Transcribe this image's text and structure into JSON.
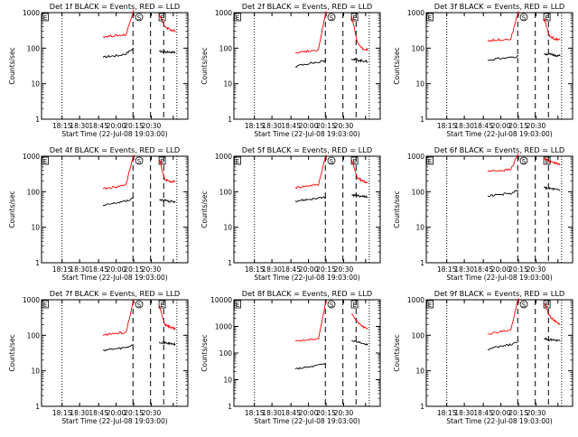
{
  "chart_data": [
    {
      "type": "line",
      "title": "Det 1f BLACK = Events, RED = LLD",
      "xlabel": "Start Time (22-Jul-08 19:03:00)",
      "ylabel": "Counts/sec",
      "ylim": [
        1,
        1000
      ],
      "yscale": "log",
      "yticks": [
        "1",
        "10",
        "100",
        "1000"
      ],
      "x_ticks": [
        "18:15",
        "18:30",
        "18:45",
        "20:00",
        "20:15",
        "20:30"
      ],
      "markers": [
        "E",
        "S",
        "E"
      ],
      "series": [
        {
          "color": "#000000",
          "values": [
            55,
            60,
            62,
            70,
            100
          ],
          "post": [
            80,
            78,
            75
          ]
        },
        {
          "color": "#ff0000",
          "values": [
            210,
            220,
            230,
            240,
            1200
          ],
          "post": [
            900,
            400,
            330,
            300
          ]
        }
      ]
    },
    {
      "type": "line",
      "title": "Det 2f BLACK = Events, RED = LLD",
      "xlabel": "Start Time (22-Jul-08 19:03:00)",
      "ylabel": "Counts/sec",
      "ylim": [
        1,
        1000
      ],
      "yscale": "log",
      "yticks": [
        "1",
        "10",
        "100",
        "1000"
      ],
      "x_ticks": [
        "18:15",
        "18:30",
        "18:45",
        "20:00",
        "20:15",
        "20:30"
      ],
      "markers": [
        "E",
        "S",
        "E"
      ],
      "series": [
        {
          "color": "#000000",
          "values": [
            30,
            35,
            38,
            40,
            45
          ],
          "post": [
            50,
            45,
            42
          ]
        },
        {
          "color": "#ff0000",
          "values": [
            75,
            80,
            85,
            90,
            1100
          ],
          "post": [
            800,
            150,
            95,
            90
          ]
        }
      ]
    },
    {
      "type": "line",
      "title": "Det 3f BLACK = Events, RED = LLD",
      "xlabel": "Start Time (22-Jul-08 19:03:00)",
      "ylabel": "Counts/sec",
      "ylim": [
        1,
        1000
      ],
      "yscale": "log",
      "yticks": [
        "1",
        "10",
        "100",
        "1000"
      ],
      "x_ticks": [
        "18:15",
        "18:30",
        "18:45",
        "20:00",
        "20:15",
        "20:30"
      ],
      "markers": [
        "E",
        "S",
        "E"
      ],
      "series": [
        {
          "color": "#000000",
          "values": [
            45,
            50,
            52,
            55,
            60
          ],
          "post": [
            70,
            65,
            60
          ]
        },
        {
          "color": "#ff0000",
          "values": [
            160,
            170,
            175,
            180,
            1100
          ],
          "post": [
            700,
            220,
            180,
            175
          ]
        }
      ]
    },
    {
      "type": "line",
      "title": "Det 4f BLACK = Events, RED = LLD",
      "xlabel": "Start Time (22-Jul-08 19:03:00)",
      "ylabel": "Counts/sec",
      "ylim": [
        1,
        1000
      ],
      "yscale": "log",
      "yticks": [
        "1",
        "10",
        "100",
        "1000"
      ],
      "x_ticks": [
        "18:15",
        "18:30",
        "18:45",
        "20:00",
        "20:15",
        "20:30"
      ],
      "markers": [
        "E",
        "S",
        "E"
      ],
      "series": [
        {
          "color": "#000000",
          "values": [
            40,
            45,
            50,
            55,
            65
          ],
          "post": [
            60,
            55,
            50
          ]
        },
        {
          "color": "#ff0000",
          "values": [
            120,
            130,
            140,
            160,
            1100
          ],
          "post": [
            800,
            220,
            200,
            190
          ]
        }
      ]
    },
    {
      "type": "line",
      "title": "Det 5f BLACK = Events, RED = LLD",
      "xlabel": "Start Time (22-Jul-08 19:03:00)",
      "ylabel": "Counts/sec",
      "ylim": [
        1,
        1000
      ],
      "yscale": "log",
      "yticks": [
        "1",
        "10",
        "100",
        "1000"
      ],
      "x_ticks": [
        "18:15",
        "18:30",
        "18:45",
        "20:00",
        "20:15",
        "20:30"
      ],
      "markers": [
        "E",
        "S",
        "E"
      ],
      "series": [
        {
          "color": "#000000",
          "values": [
            55,
            58,
            62,
            65,
            70
          ],
          "post": [
            80,
            75,
            70
          ]
        },
        {
          "color": "#ff0000",
          "values": [
            130,
            140,
            150,
            160,
            1100
          ],
          "post": [
            800,
            250,
            200,
            180
          ]
        }
      ]
    },
    {
      "type": "line",
      "title": "Det 6f BLACK = Events, RED = LLD",
      "xlabel": "Start Time (22-Jul-08 19:03:00)",
      "ylabel": "Counts/sec",
      "ylim": [
        1,
        1000
      ],
      "yscale": "log",
      "yticks": [
        "1",
        "10",
        "100",
        "1000"
      ],
      "x_ticks": [
        "18:15",
        "18:30",
        "18:45",
        "20:00",
        "20:15",
        "20:30"
      ],
      "markers": [
        "E",
        "S",
        "E"
      ],
      "series": [
        {
          "color": "#000000",
          "values": [
            75,
            80,
            85,
            90,
            110
          ],
          "post": [
            130,
            120,
            110
          ]
        },
        {
          "color": "#ff0000",
          "values": [
            380,
            390,
            400,
            420,
            1200
          ],
          "post": [
            900,
            700,
            650,
            600
          ]
        }
      ]
    },
    {
      "type": "line",
      "title": "Det 7f BLACK = Events, RED = LLD",
      "xlabel": "Start Time (22-Jul-08 19:03:00)",
      "ylabel": "Counts/sec",
      "ylim": [
        1,
        1000
      ],
      "yscale": "log",
      "yticks": [
        "1",
        "10",
        "100",
        "1000"
      ],
      "x_ticks": [
        "18:15",
        "18:30",
        "18:45",
        "20:00",
        "20:15",
        "20:30"
      ],
      "markers": [
        "E",
        "S",
        "E"
      ],
      "series": [
        {
          "color": "#000000",
          "values": [
            38,
            40,
            42,
            45,
            55
          ],
          "post": [
            65,
            60,
            55
          ]
        },
        {
          "color": "#ff0000",
          "values": [
            100,
            110,
            115,
            120,
            1000
          ],
          "post": [
            700,
            200,
            170,
            150
          ]
        }
      ]
    },
    {
      "type": "line",
      "title": "Det 8f BLACK = Events, RED = LLD",
      "xlabel": "Start Time (22-Jul-08 19:03:00)",
      "ylabel": "Counts/sec",
      "ylim": [
        1,
        10000
      ],
      "yscale": "log",
      "yticks": [
        "1",
        "10",
        "100",
        "1000",
        "10000"
      ],
      "x_ticks": [
        "18:15",
        "18:30",
        "18:45",
        "20:00",
        "20:15",
        "20:30"
      ],
      "markers": [
        "E",
        "S",
        "E"
      ],
      "series": [
        {
          "color": "#000000",
          "values": [
            25,
            28,
            30,
            35,
            40
          ],
          "post": [
            300,
            250,
            200
          ]
        },
        {
          "color": "#ff0000",
          "values": [
            280,
            300,
            320,
            350,
            9000
          ],
          "post": [
            3000,
            1500,
            1000,
            800
          ]
        }
      ]
    },
    {
      "type": "line",
      "title": "Det 9f BLACK = Events, RED = LLD",
      "xlabel": "Start Time (22-Jul-08 19:03:00)",
      "ylabel": "Counts/sec",
      "ylim": [
        1,
        1000
      ],
      "yscale": "log",
      "yticks": [
        "1",
        "10",
        "100",
        "1000"
      ],
      "x_ticks": [
        "18:15",
        "18:30",
        "18:45",
        "20:00",
        "20:15",
        "20:30"
      ],
      "markers": [
        "E",
        "S",
        "E"
      ],
      "series": [
        {
          "color": "#000000",
          "values": [
            40,
            45,
            50,
            55,
            65
          ],
          "post": [
            80,
            75,
            70
          ]
        },
        {
          "color": "#ff0000",
          "values": [
            110,
            120,
            130,
            140,
            1100
          ],
          "post": [
            800,
            350,
            250,
            200
          ]
        }
      ]
    }
  ]
}
